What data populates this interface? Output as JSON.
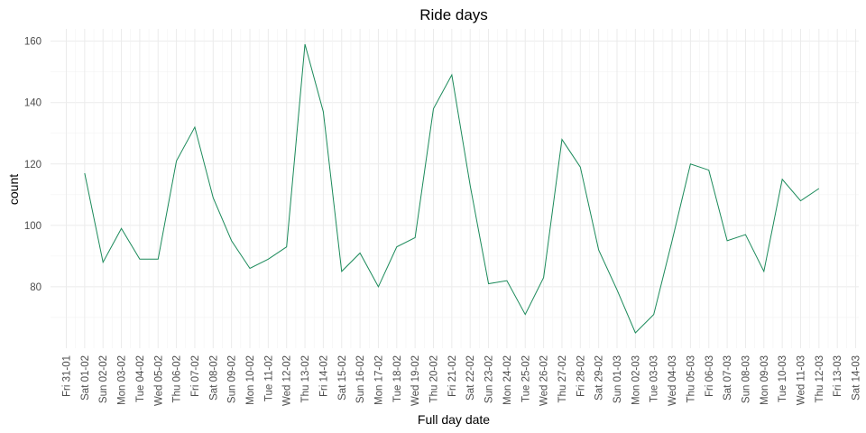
{
  "chart_data": {
    "type": "line",
    "title": "Ride days",
    "xlabel": "Full day date",
    "ylabel": "count",
    "categories": [
      "Fri 31-01",
      "Sat 01-02",
      "Sun 02-02",
      "Mon 03-02",
      "Tue 04-02",
      "Wed 05-02",
      "Thu 06-02",
      "Fri 07-02",
      "Sat 08-02",
      "Sun 09-02",
      "Mon 10-02",
      "Tue 11-02",
      "Wed 12-02",
      "Thu 13-02",
      "Fri 14-02",
      "Sat 15-02",
      "Sun 16-02",
      "Mon 17-02",
      "Tue 18-02",
      "Wed 19-02",
      "Thu 20-02",
      "Fri 21-02",
      "Sat 22-02",
      "Sun 23-02",
      "Mon 24-02",
      "Tue 25-02",
      "Wed 26-02",
      "Thu 27-02",
      "Fri 28-02",
      "Sat 29-02",
      "Sun 01-03",
      "Mon 02-03",
      "Tue 03-03",
      "Wed 04-03",
      "Thu 05-03",
      "Fri 06-03",
      "Sat 07-03",
      "Sun 08-03",
      "Mon 09-03",
      "Tue 10-03",
      "Wed 11-03",
      "Thu 12-03",
      "Fri 13-03",
      "Sat 14-03"
    ],
    "series": [
      {
        "color": "#1b8a5a",
        "values": [
          null,
          117,
          88,
          99,
          89,
          89,
          121,
          132,
          109,
          95,
          86,
          89,
          93,
          159,
          137,
          85,
          91,
          80,
          93,
          96,
          138,
          149,
          113,
          81,
          82,
          71,
          83,
          128,
          119,
          92,
          79,
          65,
          71,
          95,
          120,
          118,
          95,
          97,
          85,
          115,
          108,
          112,
          null,
          null
        ]
      }
    ],
    "yticks": [
      80,
      100,
      120,
      140,
      160
    ],
    "ylim": [
      60,
      164
    ],
    "grid": true
  }
}
